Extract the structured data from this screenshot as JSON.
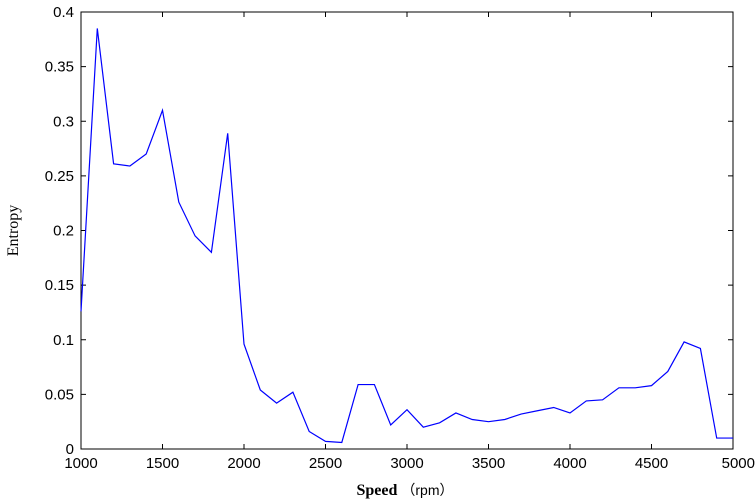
{
  "chart_data": {
    "type": "line",
    "title": "",
    "xlabel": "Speed",
    "xlabel_unit": "（rpm）",
    "ylabel": "Entropy",
    "xlim": [
      1000,
      5000
    ],
    "ylim": [
      0,
      0.4
    ],
    "xticks": [
      1000,
      1500,
      2000,
      2500,
      3000,
      3500,
      4000,
      4500,
      5000
    ],
    "yticks": [
      0,
      0.05,
      0.1,
      0.15,
      0.2,
      0.25,
      0.3,
      0.35,
      0.4
    ],
    "ytick_labels": [
      "0",
      "0.05",
      "0.1",
      "0.15",
      "0.2",
      "0.25",
      "0.3",
      "0.35",
      "0.4"
    ],
    "grid": false,
    "line_color": "#0000ff",
    "series": [
      {
        "x": [
          1000,
          1100,
          1200,
          1300,
          1400,
          1500,
          1600,
          1700,
          1800,
          1900,
          2000,
          2100,
          2200,
          2300,
          2400,
          2500,
          2600,
          2700,
          2800,
          2900,
          3000,
          3100,
          3200,
          3300,
          3400,
          3500,
          3600,
          3700,
          3800,
          3900,
          4000,
          4100,
          4200,
          4300,
          4400,
          4500,
          4600,
          4700,
          4800,
          4900,
          5000
        ],
        "y": [
          0.126,
          0.385,
          0.261,
          0.259,
          0.27,
          0.31,
          0.226,
          0.195,
          0.18,
          0.289,
          0.096,
          0.054,
          0.042,
          0.052,
          0.016,
          0.007,
          0.006,
          0.059,
          0.059,
          0.022,
          0.036,
          0.02,
          0.024,
          0.033,
          0.027,
          0.025,
          0.027,
          0.032,
          0.035,
          0.038,
          0.033,
          0.044,
          0.045,
          0.056,
          0.056,
          0.058,
          0.071,
          0.098,
          0.092,
          0.01,
          0.01
        ]
      }
    ]
  }
}
